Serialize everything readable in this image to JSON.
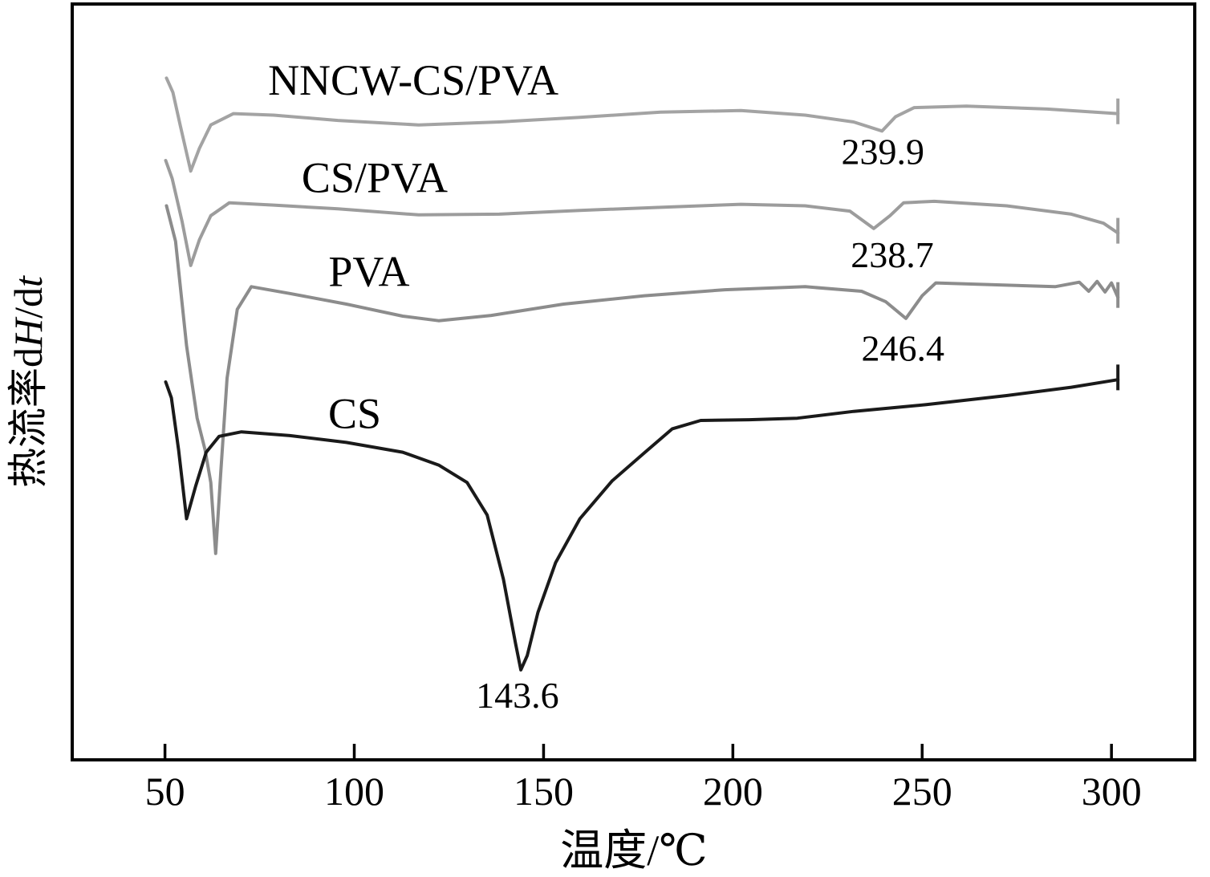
{
  "figure": {
    "background": "#ffffff",
    "border_color": "#000000"
  },
  "chart_data": {
    "type": "line",
    "title": "",
    "xlabel": "温度/℃",
    "ylabel": "热流率dH/dt",
    "ylabel_parts": [
      {
        "text": "热流率d",
        "italic": false
      },
      {
        "text": "H",
        "italic": true
      },
      {
        "text": "/d",
        "italic": false
      },
      {
        "text": "t",
        "italic": true
      }
    ],
    "xlim": [
      25.5,
      322
    ],
    "ylim": [
      0,
      100
    ],
    "x_ticks": [
      50,
      100,
      150,
      200,
      250,
      300
    ],
    "y_ticks": [],
    "grid": false,
    "legend_position": "inline-labels",
    "axis_color": "#000000",
    "series": [
      {
        "name": "NNCW-CS/PVA",
        "color": "#a3a3a3",
        "peak": {
          "label": "239.9",
          "x": 239.6,
          "y": 78.8
        },
        "label_pos": {
          "x": 115.6,
          "y": 88.0
        },
        "points": [
          [
            50.4,
            90.2
          ],
          [
            52.1,
            88.3
          ],
          [
            54.0,
            84.0
          ],
          [
            56.8,
            77.9
          ],
          [
            59.1,
            80.9
          ],
          [
            62.1,
            84.0
          ],
          [
            68.1,
            85.5
          ],
          [
            78.7,
            85.3
          ],
          [
            95.7,
            84.6
          ],
          [
            117.0,
            84.0
          ],
          [
            138.3,
            84.4
          ],
          [
            159.6,
            85.0
          ],
          [
            180.9,
            85.7
          ],
          [
            202.1,
            85.9
          ],
          [
            219.1,
            85.3
          ],
          [
            231.9,
            84.4
          ],
          [
            239.4,
            83.2
          ],
          [
            243.0,
            85.1
          ],
          [
            247.9,
            86.3
          ],
          [
            261.7,
            86.5
          ],
          [
            283.0,
            86.1
          ],
          [
            301.7,
            85.5
          ]
        ]
      },
      {
        "name": "CS/PVA",
        "color": "#9c9c9c",
        "peak": {
          "label": "238.7",
          "x": 242.1,
          "y": 65.2
        },
        "label_pos": {
          "x": 105.4,
          "y": 75.1
        },
        "points": [
          [
            50.2,
            79.3
          ],
          [
            51.9,
            76.9
          ],
          [
            54.5,
            71.3
          ],
          [
            56.8,
            65.4
          ],
          [
            59.1,
            68.8
          ],
          [
            62.1,
            72.0
          ],
          [
            67.0,
            73.7
          ],
          [
            78.7,
            73.4
          ],
          [
            95.7,
            72.9
          ],
          [
            117.0,
            72.1
          ],
          [
            138.3,
            72.2
          ],
          [
            159.6,
            72.7
          ],
          [
            180.9,
            73.1
          ],
          [
            202.1,
            73.5
          ],
          [
            219.1,
            73.3
          ],
          [
            230.9,
            72.6
          ],
          [
            237.2,
            70.3
          ],
          [
            241.5,
            72.0
          ],
          [
            245.1,
            73.7
          ],
          [
            253.2,
            73.9
          ],
          [
            272.3,
            73.3
          ],
          [
            289.4,
            72.2
          ],
          [
            297.9,
            71.0
          ],
          [
            301.7,
            69.7
          ]
        ]
      },
      {
        "name": "PVA",
        "color": "#8c8c8c",
        "peak": {
          "label": "246.4",
          "x": 244.9,
          "y": 52.8
        },
        "label_pos": {
          "x": 103.9,
          "y": 62.7
        },
        "points": [
          [
            50.4,
            73.3
          ],
          [
            52.8,
            68.6
          ],
          [
            55.7,
            54.8
          ],
          [
            58.5,
            45.2
          ],
          [
            60.6,
            41.0
          ],
          [
            62.1,
            36.7
          ],
          [
            63.4,
            27.3
          ],
          [
            64.7,
            37.8
          ],
          [
            66.4,
            50.5
          ],
          [
            69.1,
            59.6
          ],
          [
            72.8,
            62.6
          ],
          [
            83.0,
            61.7
          ],
          [
            97.9,
            60.3
          ],
          [
            112.8,
            58.7
          ],
          [
            122.3,
            58.1
          ],
          [
            136.2,
            58.8
          ],
          [
            155.3,
            60.3
          ],
          [
            176.6,
            61.4
          ],
          [
            197.9,
            62.2
          ],
          [
            219.1,
            62.6
          ],
          [
            234.0,
            62.0
          ],
          [
            240.4,
            60.6
          ],
          [
            245.7,
            58.4
          ],
          [
            250.0,
            61.4
          ],
          [
            253.6,
            63.1
          ],
          [
            272.3,
            62.8
          ],
          [
            285.1,
            62.6
          ],
          [
            291.5,
            63.2
          ],
          [
            294.0,
            62.0
          ],
          [
            296.2,
            63.3
          ],
          [
            298.3,
            61.9
          ],
          [
            300.0,
            63.1
          ],
          [
            301.7,
            61.2
          ]
        ]
      },
      {
        "name": "CS",
        "color": "#1a1a1a",
        "peak": {
          "label": "143.6",
          "x": 143.1,
          "y": 6.9
        },
        "label_pos": {
          "x": 100.1,
          "y": 43.9
        },
        "points": [
          [
            50.2,
            50.0
          ],
          [
            51.7,
            47.9
          ],
          [
            53.6,
            41.0
          ],
          [
            55.7,
            31.9
          ],
          [
            58.1,
            36.2
          ],
          [
            60.9,
            40.7
          ],
          [
            64.3,
            42.8
          ],
          [
            70.2,
            43.4
          ],
          [
            83.0,
            42.9
          ],
          [
            97.9,
            42.0
          ],
          [
            112.8,
            40.7
          ],
          [
            122.3,
            39.0
          ],
          [
            129.8,
            36.7
          ],
          [
            135.1,
            32.4
          ],
          [
            139.4,
            23.9
          ],
          [
            142.6,
            15.4
          ],
          [
            144.0,
            11.9
          ],
          [
            145.7,
            13.8
          ],
          [
            148.5,
            19.5
          ],
          [
            153.2,
            26.1
          ],
          [
            159.6,
            31.9
          ],
          [
            168.1,
            36.9
          ],
          [
            176.6,
            40.6
          ],
          [
            184.0,
            43.8
          ],
          [
            191.5,
            44.9
          ],
          [
            204.3,
            45.0
          ],
          [
            217.0,
            45.2
          ],
          [
            231.9,
            46.1
          ],
          [
            251.1,
            47.0
          ],
          [
            272.3,
            48.2
          ],
          [
            289.4,
            49.3
          ],
          [
            301.7,
            50.3
          ]
        ]
      }
    ]
  }
}
